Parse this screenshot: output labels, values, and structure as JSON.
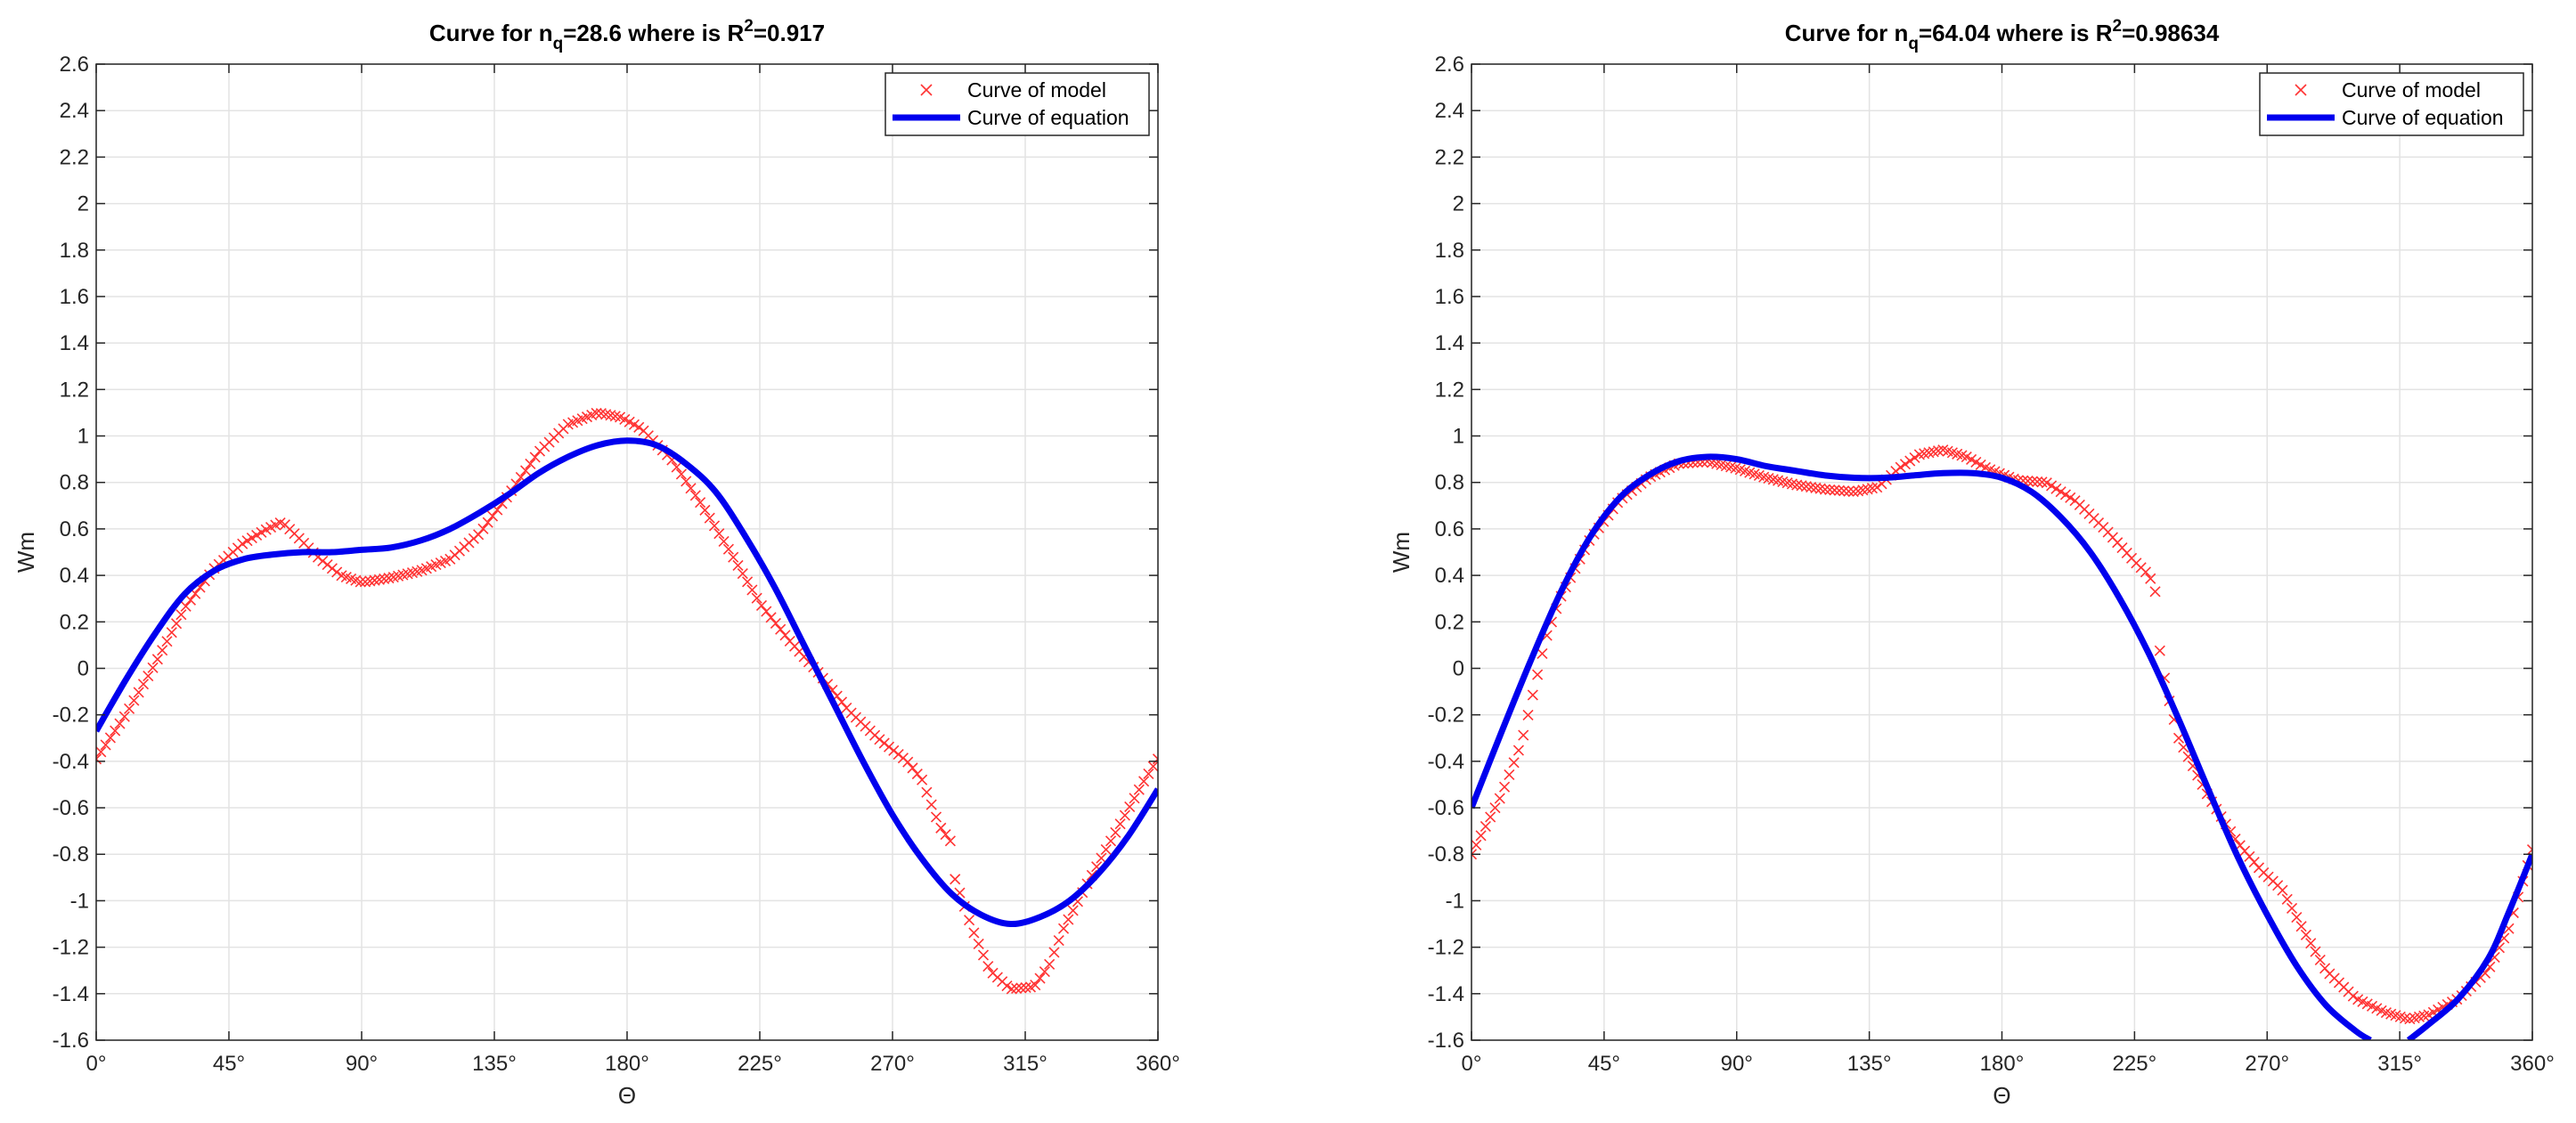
{
  "chart_data": [
    {
      "type": "line",
      "title": "Curve for n_q=28.6 where is R^2=0.917",
      "title_parts": {
        "prefix": "Curve for n",
        "sub": "q",
        "middle": "=28.6 where is R",
        "sup": "2",
        "suffix": "=0.917"
      },
      "xlabel": "Θ",
      "ylabel": "Wm",
      "xlim": [
        0,
        360
      ],
      "ylim": [
        -1.6,
        2.6
      ],
      "xticks": [
        0,
        45,
        90,
        135,
        180,
        225,
        270,
        315,
        360
      ],
      "xtick_labels": [
        "0°",
        "45°",
        "90°",
        "135°",
        "180°",
        "225°",
        "270°",
        "315°",
        "360°"
      ],
      "yticks": [
        -1.6,
        -1.4,
        -1.2,
        -1,
        -0.8,
        -0.6,
        -0.4,
        -0.2,
        0,
        0.2,
        0.4,
        0.6,
        0.8,
        1,
        1.2,
        1.4,
        1.6,
        1.8,
        2,
        2.2,
        2.4,
        2.6
      ],
      "ytick_labels": [
        "-1.6",
        "-1.4",
        "-1.2",
        "-1",
        "-0.8",
        "-0.6",
        "-0.4",
        "-0.2",
        "0",
        "0.2",
        "0.4",
        "0.6",
        "0.8",
        "1",
        "1.2",
        "1.4",
        "1.6",
        "1.8",
        "2",
        "2.2",
        "2.4",
        "2.6"
      ],
      "grid": true,
      "legend_position": "top-right",
      "series": [
        {
          "name": "Curve of model",
          "style": "markers-x",
          "color": "#ff3333",
          "points": [
            [
              0,
              -0.39
            ],
            [
              10,
              -0.2
            ],
            [
              20,
              0.02
            ],
            [
              30,
              0.26
            ],
            [
              40,
              0.43
            ],
            [
              50,
              0.54
            ],
            [
              58,
              0.6
            ],
            [
              63,
              0.63
            ],
            [
              68,
              0.57
            ],
            [
              75,
              0.48
            ],
            [
              83,
              0.4
            ],
            [
              90,
              0.37
            ],
            [
              100,
              0.39
            ],
            [
              110,
              0.42
            ],
            [
              120,
              0.47
            ],
            [
              130,
              0.58
            ],
            [
              140,
              0.75
            ],
            [
              150,
              0.93
            ],
            [
              160,
              1.05
            ],
            [
              170,
              1.1
            ],
            [
              178,
              1.08
            ],
            [
              185,
              1.03
            ],
            [
              195,
              0.9
            ],
            [
              205,
              0.71
            ],
            [
              215,
              0.5
            ],
            [
              225,
              0.28
            ],
            [
              235,
              0.12
            ],
            [
              245,
              -0.02
            ],
            [
              255,
              -0.18
            ],
            [
              265,
              -0.3
            ],
            [
              275,
              -0.4
            ],
            [
              280,
              -0.48
            ],
            [
              286,
              -0.68
            ],
            [
              290,
              -0.75
            ],
            [
              291,
              -0.9
            ],
            [
              297,
              -1.12
            ],
            [
              303,
              -1.3
            ],
            [
              310,
              -1.38
            ],
            [
              318,
              -1.37
            ],
            [
              323,
              -1.28
            ],
            [
              328,
              -1.12
            ],
            [
              335,
              -0.95
            ],
            [
              345,
              -0.72
            ],
            [
              355,
              -0.49
            ],
            [
              360,
              -0.39
            ]
          ]
        },
        {
          "name": "Curve of equation",
          "style": "line",
          "color": "#0000ee",
          "points": [
            [
              0,
              -0.27
            ],
            [
              10,
              -0.05
            ],
            [
              20,
              0.15
            ],
            [
              30,
              0.32
            ],
            [
              40,
              0.42
            ],
            [
              50,
              0.47
            ],
            [
              60,
              0.49
            ],
            [
              70,
              0.5
            ],
            [
              80,
              0.5
            ],
            [
              90,
              0.51
            ],
            [
              100,
              0.52
            ],
            [
              110,
              0.55
            ],
            [
              120,
              0.6
            ],
            [
              130,
              0.67
            ],
            [
              140,
              0.75
            ],
            [
              150,
              0.84
            ],
            [
              160,
              0.91
            ],
            [
              170,
              0.96
            ],
            [
              180,
              0.98
            ],
            [
              190,
              0.96
            ],
            [
              200,
              0.88
            ],
            [
              210,
              0.76
            ],
            [
              220,
              0.57
            ],
            [
              230,
              0.35
            ],
            [
              240,
              0.1
            ],
            [
              250,
              -0.15
            ],
            [
              260,
              -0.4
            ],
            [
              270,
              -0.63
            ],
            [
              280,
              -0.82
            ],
            [
              290,
              -0.97
            ],
            [
              300,
              -1.06
            ],
            [
              310,
              -1.1
            ],
            [
              320,
              -1.07
            ],
            [
              330,
              -1.0
            ],
            [
              340,
              -0.88
            ],
            [
              350,
              -0.72
            ],
            [
              360,
              -0.52
            ]
          ]
        }
      ]
    },
    {
      "type": "line",
      "title": "Curve for n_q=64.04 where is R^2=0.98634",
      "title_parts": {
        "prefix": "Curve for n",
        "sub": "q",
        "middle": "=64.04 where is R",
        "sup": "2",
        "suffix": "=0.98634"
      },
      "xlabel": "Θ",
      "ylabel": "Wm",
      "xlim": [
        0,
        360
      ],
      "ylim": [
        -1.6,
        2.6
      ],
      "xticks": [
        0,
        45,
        90,
        135,
        180,
        225,
        270,
        315,
        360
      ],
      "xtick_labels": [
        "0°",
        "45°",
        "90°",
        "135°",
        "180°",
        "225°",
        "270°",
        "315°",
        "360°"
      ],
      "yticks": [
        -1.6,
        -1.4,
        -1.2,
        -1,
        -0.8,
        -0.6,
        -0.4,
        -0.2,
        0,
        0.2,
        0.4,
        0.6,
        0.8,
        1,
        1.2,
        1.4,
        1.6,
        1.8,
        2,
        2.2,
        2.4,
        2.6
      ],
      "ytick_labels": [
        "-1.6",
        "-1.4",
        "-1.2",
        "-1",
        "-0.8",
        "-0.6",
        "-0.4",
        "-0.2",
        "0",
        "0.2",
        "0.4",
        "0.6",
        "0.8",
        "1",
        "1.2",
        "1.4",
        "1.6",
        "1.8",
        "2",
        "2.2",
        "2.4",
        "2.6"
      ],
      "grid": true,
      "legend_position": "top-right",
      "series": [
        {
          "name": "Curve of model",
          "style": "markers-x",
          "color": "#ff3333",
          "points": [
            [
              0,
              -0.8
            ],
            [
              10,
              -0.55
            ],
            [
              17,
              -0.32
            ],
            [
              22,
              -0.05
            ],
            [
              25,
              0.12
            ],
            [
              30,
              0.3
            ],
            [
              40,
              0.55
            ],
            [
              50,
              0.72
            ],
            [
              60,
              0.82
            ],
            [
              70,
              0.88
            ],
            [
              80,
              0.89
            ],
            [
              90,
              0.86
            ],
            [
              100,
              0.82
            ],
            [
              110,
              0.79
            ],
            [
              120,
              0.77
            ],
            [
              130,
              0.76
            ],
            [
              138,
              0.78
            ],
            [
              145,
              0.86
            ],
            [
              152,
              0.92
            ],
            [
              160,
              0.94
            ],
            [
              168,
              0.91
            ],
            [
              175,
              0.86
            ],
            [
              185,
              0.81
            ],
            [
              195,
              0.8
            ],
            [
              205,
              0.72
            ],
            [
              215,
              0.6
            ],
            [
              225,
              0.46
            ],
            [
              230,
              0.4
            ],
            [
              232,
              0.33
            ],
            [
              233,
              0.12
            ],
            [
              236,
              -0.1
            ],
            [
              240,
              -0.3
            ],
            [
              250,
              -0.55
            ],
            [
              260,
              -0.75
            ],
            [
              268,
              -0.87
            ],
            [
              275,
              -0.95
            ],
            [
              282,
              -1.12
            ],
            [
              290,
              -1.3
            ],
            [
              300,
              -1.42
            ],
            [
              310,
              -1.48
            ],
            [
              318,
              -1.51
            ],
            [
              325,
              -1.49
            ],
            [
              335,
              -1.42
            ],
            [
              345,
              -1.3
            ],
            [
              352,
              -1.12
            ],
            [
              360,
              -0.78
            ]
          ]
        },
        {
          "name": "Curve of equation",
          "style": "line",
          "color": "#0000ee",
          "points": [
            [
              0,
              -0.6
            ],
            [
              10,
              -0.28
            ],
            [
              20,
              0.03
            ],
            [
              30,
              0.32
            ],
            [
              40,
              0.56
            ],
            [
              50,
              0.73
            ],
            [
              60,
              0.83
            ],
            [
              70,
              0.89
            ],
            [
              80,
              0.91
            ],
            [
              90,
              0.9
            ],
            [
              100,
              0.87
            ],
            [
              110,
              0.85
            ],
            [
              120,
              0.83
            ],
            [
              130,
              0.82
            ],
            [
              140,
              0.82
            ],
            [
              150,
              0.83
            ],
            [
              160,
              0.84
            ],
            [
              170,
              0.84
            ],
            [
              180,
              0.82
            ],
            [
              190,
              0.76
            ],
            [
              200,
              0.65
            ],
            [
              210,
              0.5
            ],
            [
              220,
              0.3
            ],
            [
              230,
              0.06
            ],
            [
              240,
              -0.22
            ],
            [
              250,
              -0.52
            ],
            [
              260,
              -0.81
            ],
            [
              270,
              -1.06
            ],
            [
              280,
              -1.28
            ],
            [
              290,
              -1.45
            ],
            [
              300,
              -1.56
            ],
            [
              305,
              -1.6
            ]
          ],
          "points_b": [
            [
              318,
              -1.6
            ],
            [
              325,
              -1.53
            ],
            [
              335,
              -1.42
            ],
            [
              345,
              -1.25
            ],
            [
              352,
              -1.05
            ],
            [
              360,
              -0.8
            ]
          ]
        }
      ]
    }
  ]
}
